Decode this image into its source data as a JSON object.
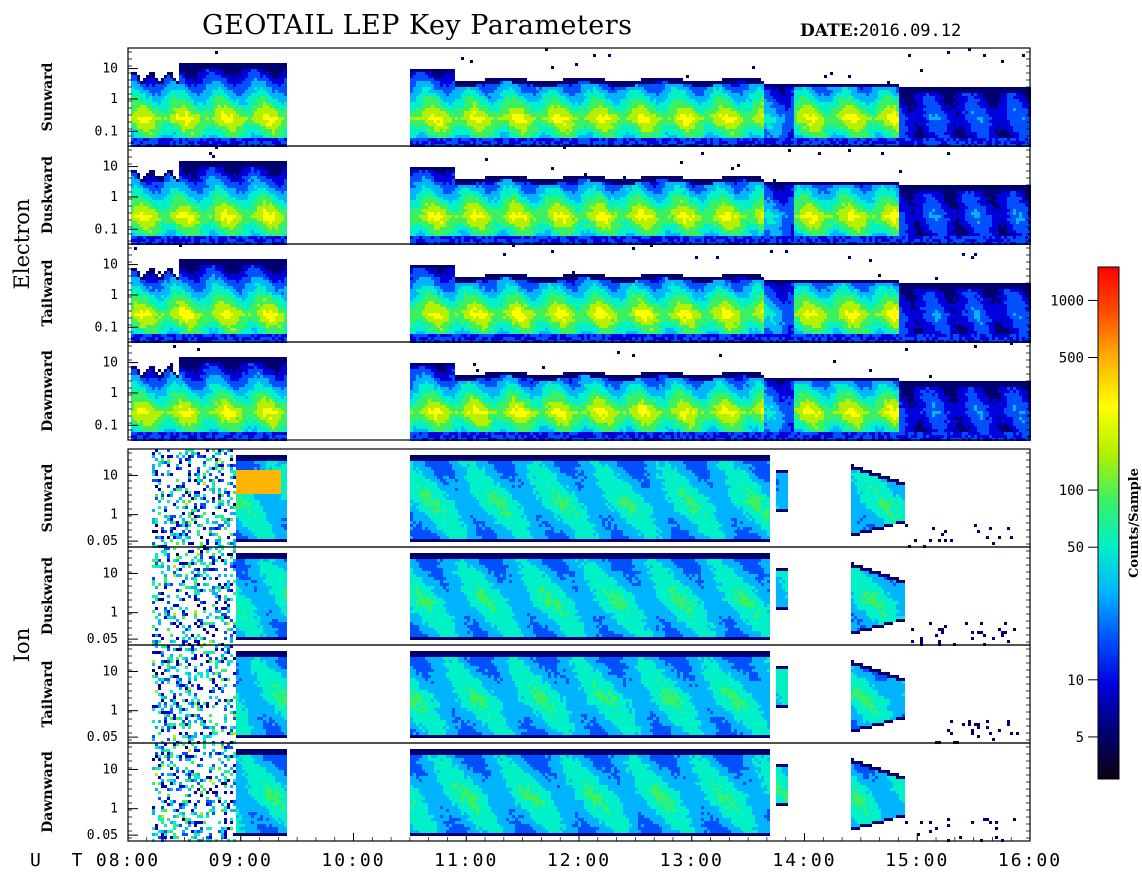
{
  "title": "GEOTAIL LEP Key Parameters",
  "date_label": "DATE:",
  "date_value": "2016.09.12",
  "ut_label": "U T",
  "colors": {
    "colormap": [
      "#0c0014",
      "#00006e",
      "#0000dc",
      "#0050ff",
      "#00b4ff",
      "#00f0c8",
      "#3cf064",
      "#b4f000",
      "#ffff00",
      "#ffb400",
      "#ff5000",
      "#ff0000"
    ],
    "background": "#ffffff",
    "axes": "#000000"
  },
  "chart_data": {
    "type": "heatmap",
    "title": "GEOTAIL LEP Key Parameters",
    "x_axis": {
      "label": "U T",
      "range": [
        "08:00",
        "16:00"
      ],
      "ticks": [
        "08:00",
        "09:00",
        "10:00",
        "11:00",
        "12:00",
        "13:00",
        "14:00",
        "15:00",
        "16:00"
      ]
    },
    "data_gaps": [
      [
        "09:25",
        "10:30"
      ]
    ],
    "groups": [
      {
        "name": "Electron",
        "y_scale": "log",
        "y_ticks": [
          "10",
          "1",
          "0.1"
        ],
        "panels": [
          "Sunward",
          "Duskward",
          "Tailward",
          "Dawnward"
        ],
        "intensity_profile": "moderate broadband flux from ~0.1 to ~3, peak green-yellow near 0.2-0.5 until ~14:50, weaker thereafter"
      },
      {
        "name": "Ion",
        "y_scale": "log",
        "y_ticks": [
          "10",
          "1",
          "0.05"
        ],
        "panels": [
          "Sunward",
          "Duskward",
          "Tailward",
          "Dawnward"
        ],
        "intensity_profile": "green flux spanning ~0.05-20 between 10:30 and 13:40, patchy 13:45-14:55, sparse afterwards"
      }
    ],
    "colorbar": {
      "label": "Counts/Sample",
      "scale": "log",
      "range": [
        3,
        1500
      ],
      "ticks": [
        "1000",
        "500",
        "100",
        "50",
        "10",
        "5"
      ]
    }
  }
}
